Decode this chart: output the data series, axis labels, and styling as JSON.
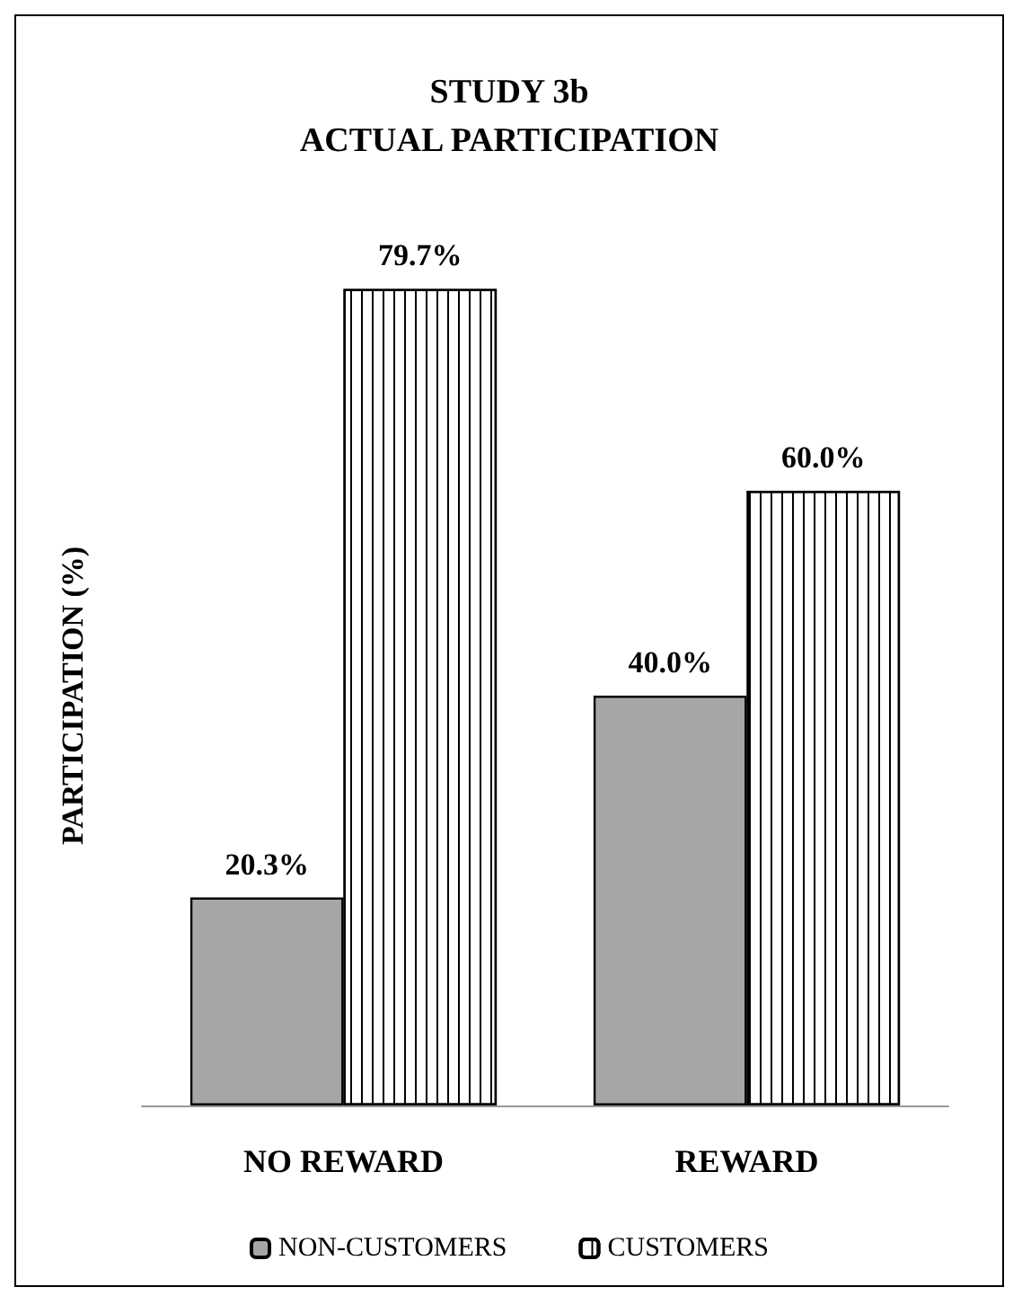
{
  "chart_data": {
    "type": "bar",
    "title": "STUDY 3b",
    "subtitle": "ACTUAL PARTICIPATION",
    "ylabel": "PARTICIPATION (%)",
    "categories": [
      "NO REWARD",
      "REWARD"
    ],
    "series": [
      {
        "name": "NON-CUSTOMERS",
        "color": "#a6a6a6",
        "values": [
          20.3,
          40.0
        ],
        "value_labels": [
          "20.3%",
          "40.0%"
        ]
      },
      {
        "name": "CUSTOMERS",
        "color": "#ffffff",
        "values": [
          79.7,
          60.0
        ],
        "value_labels": [
          "79.7%",
          "60.0%"
        ]
      }
    ],
    "legend": "bottom",
    "grid": false,
    "tick_labels": "x"
  }
}
